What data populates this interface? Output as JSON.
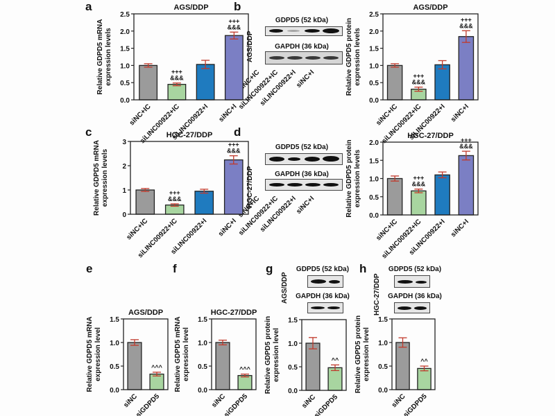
{
  "panel_letters": [
    "a",
    "b",
    "c",
    "d",
    "e",
    "f",
    "g",
    "h"
  ],
  "colors": {
    "gray": "#9b9b9b",
    "green": "#a8d5a0",
    "blue": "#1f7bbf",
    "purple": "#7b7fc4",
    "error": "#c0392b"
  },
  "blots": {
    "b": {
      "cell_label": "AGS/DDP",
      "top": "GDPD5 (52 kDa)",
      "bottom": "GAPDH (36 kDa)",
      "lanes": [
        "siNC+IC",
        "siLINC00922+IC",
        "siLINC00922+I",
        "siNC+I"
      ]
    },
    "d": {
      "cell_label": "HGC-27/DDP",
      "top": "GDPD5 (52 kDa)",
      "bottom": "GAPDH (36 kDa)",
      "lanes": [
        "siNC+IC",
        "siLINC00922+IC",
        "siLINC00922+I",
        "siNC+I"
      ]
    },
    "g": {
      "cell_label": "AGS/DDP",
      "top": "GDPD5 (52 kDa)",
      "bottom": "GAPDH (36 kDa)"
    },
    "h": {
      "cell_label": "HGC-27/DDP",
      "top": "GDPD5 (52 kDa)",
      "bottom": "GAPDH (36 kDa)"
    }
  },
  "chart_data": [
    {
      "id": "a",
      "type": "bar",
      "title": "AGS/DDP",
      "ylabel": [
        "Relative GDPD5 mRNA",
        "expression levels"
      ],
      "categories": [
        "siNC+IC",
        "siLINC00922+IC",
        "siLINC00922+I",
        "siNC+I"
      ],
      "values": [
        1.0,
        0.45,
        1.03,
        1.87
      ],
      "errors": [
        0.05,
        0.04,
        0.12,
        0.1
      ],
      "annotations": [
        "",
        "+++\n&&&",
        "",
        "+++\n&&&"
      ],
      "colors": [
        "gray",
        "green",
        "blue",
        "purple"
      ],
      "ylim": [
        0,
        2.5
      ],
      "yticks": [
        "0.0",
        "0.5",
        "1.0",
        "1.5",
        "2.0",
        "2.5"
      ],
      "ytick_values": [
        0,
        0.5,
        1,
        1.5,
        2,
        2.5
      ]
    },
    {
      "id": "b",
      "type": "bar",
      "title": "AGS/DDP",
      "ylabel": [
        "Relative GDPD5 protein",
        "expression levels"
      ],
      "categories": [
        "siNC+IC",
        "siLINC00922+IC",
        "siLINC00922+I",
        "siNC+I"
      ],
      "values": [
        1.0,
        0.31,
        1.02,
        1.84
      ],
      "errors": [
        0.05,
        0.06,
        0.12,
        0.17
      ],
      "annotations": [
        "",
        "+++\n&&&",
        "",
        "+++\n&&&"
      ],
      "colors": [
        "gray",
        "green",
        "blue",
        "purple"
      ],
      "ylim": [
        0,
        2.5
      ],
      "yticks": [
        "0.0",
        "0.5",
        "1.0",
        "1.5",
        "2.0",
        "2.5"
      ],
      "ytick_values": [
        0,
        0.5,
        1,
        1.5,
        2,
        2.5
      ]
    },
    {
      "id": "c",
      "type": "bar",
      "title": "HGC-27/DDP",
      "ylabel": [
        "Relative GDPD5 mRNA",
        "expression levels"
      ],
      "categories": [
        "siNC+IC",
        "siLINC00922+IC",
        "siLINC00922+I",
        "siNC+I"
      ],
      "values": [
        1.0,
        0.38,
        0.95,
        2.24
      ],
      "errors": [
        0.06,
        0.05,
        0.08,
        0.17
      ],
      "annotations": [
        "",
        "+++\n&&&",
        "",
        "+++\n&&&"
      ],
      "colors": [
        "gray",
        "green",
        "blue",
        "purple"
      ],
      "ylim": [
        0,
        3
      ],
      "yticks": [
        "0",
        "1",
        "2",
        "3"
      ],
      "ytick_values": [
        0,
        1,
        2,
        3
      ]
    },
    {
      "id": "d",
      "type": "bar",
      "title": "HGC-27/DDP",
      "ylabel": [
        "Relative GDPD5 protein",
        "expression levels"
      ],
      "categories": [
        "siNC+IC",
        "siLINC00922+IC",
        "siLINC00922+I",
        "siNC+I"
      ],
      "values": [
        1.0,
        0.66,
        1.1,
        1.63
      ],
      "errors": [
        0.07,
        0.05,
        0.08,
        0.12
      ],
      "annotations": [
        "",
        "+++\n&&&",
        "",
        "+++\n&&&"
      ],
      "colors": [
        "gray",
        "green",
        "blue",
        "purple"
      ],
      "ylim": [
        0,
        2.0
      ],
      "yticks": [
        "0.0",
        "0.5",
        "1.0",
        "1.5",
        "2.0"
      ],
      "ytick_values": [
        0,
        0.5,
        1,
        1.5,
        2
      ]
    },
    {
      "id": "e",
      "type": "bar",
      "title": "AGS/DDP",
      "ylabel": [
        "Relative GDPD5 mRNA",
        "expression level"
      ],
      "categories": [
        "siNC",
        "siGDPD5"
      ],
      "values": [
        1.0,
        0.33
      ],
      "errors": [
        0.06,
        0.04
      ],
      "annotations": [
        "",
        "^^^"
      ],
      "colors": [
        "gray",
        "green"
      ],
      "ylim": [
        0,
        1.5
      ],
      "yticks": [
        "0.0",
        "0.5",
        "1.0",
        "1.5"
      ],
      "ytick_values": [
        0,
        0.5,
        1,
        1.5
      ]
    },
    {
      "id": "f",
      "type": "bar",
      "title": "HGC-27/DDP",
      "ylabel": [
        "Relative GDPD5 mRNA",
        "expression level"
      ],
      "categories": [
        "siNC",
        "siGDPD5"
      ],
      "values": [
        1.0,
        0.3
      ],
      "errors": [
        0.05,
        0.03
      ],
      "annotations": [
        "",
        "^^^"
      ],
      "colors": [
        "gray",
        "green"
      ],
      "ylim": [
        0,
        1.5
      ],
      "yticks": [
        "0.0",
        "0.5",
        "1.0",
        "1.5"
      ],
      "ytick_values": [
        0,
        0.5,
        1,
        1.5
      ]
    },
    {
      "id": "g",
      "type": "bar",
      "title": "",
      "ylabel": [
        "Relative GDPD5 protein",
        "expression level"
      ],
      "categories": [
        "siNC",
        "siGDPD5"
      ],
      "values": [
        1.0,
        0.48
      ],
      "errors": [
        0.12,
        0.06
      ],
      "annotations": [
        "",
        "^^"
      ],
      "colors": [
        "gray",
        "green"
      ],
      "ylim": [
        0,
        1.5
      ],
      "yticks": [
        "0.0",
        "0.5",
        "1.0",
        "1.5"
      ],
      "ytick_values": [
        0,
        0.5,
        1,
        1.5
      ]
    },
    {
      "id": "h",
      "type": "bar",
      "title": "",
      "ylabel": [
        "Relative GDPD5 protein",
        "expression level"
      ],
      "categories": [
        "siNC",
        "siGDPD5"
      ],
      "values": [
        1.0,
        0.45
      ],
      "errors": [
        0.1,
        0.05
      ],
      "annotations": [
        "",
        "^^"
      ],
      "colors": [
        "gray",
        "green"
      ],
      "ylim": [
        0,
        1.5
      ],
      "yticks": [
        "0.0",
        "0.5",
        "1.0",
        "1.5"
      ],
      "ytick_values": [
        0,
        0.5,
        1,
        1.5
      ]
    }
  ]
}
